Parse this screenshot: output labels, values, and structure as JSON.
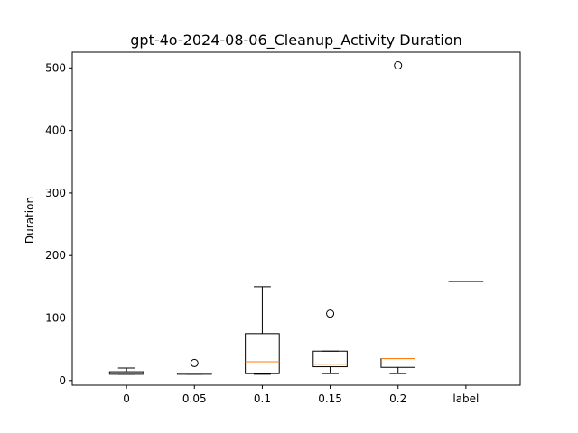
{
  "chart_data": {
    "type": "box",
    "title": "gpt-4o-2024-08-06_Cleanup_Activity Duration",
    "xlabel": "",
    "ylabel": "Duration",
    "categories": [
      "0",
      "0.05",
      "0.1",
      "0.15",
      "0.2",
      "label"
    ],
    "ylim": [
      -7.5,
      525
    ],
    "yticks": [
      0,
      100,
      200,
      300,
      400,
      500
    ],
    "grid": false,
    "colors": {
      "box": "#000000",
      "median": "#ff7f0e",
      "outlier": "#000000",
      "background": "#ffffff"
    },
    "boxes": [
      {
        "category": "0",
        "whislo": 10,
        "q1": 10,
        "median": 11,
        "q3": 14,
        "whishi": 20,
        "fliers": []
      },
      {
        "category": "0.05",
        "whislo": 10,
        "q1": 10,
        "median": 11,
        "q3": 11,
        "whishi": 12,
        "fliers": [
          28
        ]
      },
      {
        "category": "0.1",
        "whislo": 10,
        "q1": 11,
        "median": 30,
        "q3": 75,
        "whishi": 150,
        "fliers": []
      },
      {
        "category": "0.15",
        "whislo": 11,
        "q1": 22,
        "median": 26,
        "q3": 47,
        "whishi": 47,
        "fliers": [
          107
        ]
      },
      {
        "category": "0.2",
        "whislo": 11,
        "q1": 21,
        "median": 35,
        "q3": 35,
        "whishi": 35,
        "fliers": [
          504
        ]
      },
      {
        "category": "label",
        "whislo": 159,
        "q1": 159,
        "median": 159,
        "q3": 159,
        "whishi": 159,
        "fliers": []
      }
    ]
  }
}
